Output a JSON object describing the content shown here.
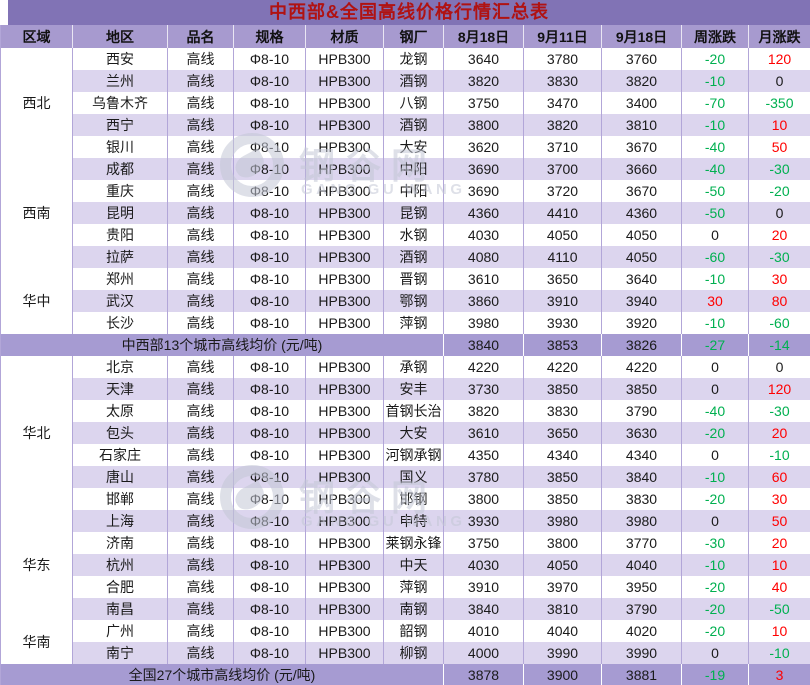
{
  "watermark": {
    "cn": "钢谷网",
    "en": "GANG GU WANG"
  },
  "colors": {
    "title_text": "#b01212",
    "title_bg": "#8173b5",
    "header_bg": "#a79acf",
    "stripe_bg": "#dcd5ee",
    "summary_bg": "#a69bd2",
    "grid": "#b2a6d8",
    "up_red": "#ff0000",
    "down_green": "#00b050"
  },
  "chart_data": {
    "type": "table",
    "title": "中西部&全国高线价格行情汇总表",
    "columns": [
      "区域",
      "地区",
      "品名",
      "规格",
      "材质",
      "钢厂",
      "8月18日",
      "9月11日",
      "9月18日",
      "周涨跌",
      "月涨跌"
    ],
    "shared_row_values": {
      "product": "高线",
      "spec": "Φ8-10",
      "material": "HPB300"
    },
    "groups": [
      {
        "region": "西北",
        "cities": [
          {
            "city": "西安",
            "mill": "龙钢",
            "prices": [
              3640,
              3780,
              3760
            ],
            "week": -20,
            "month": 120
          },
          {
            "city": "兰州",
            "mill": "酒钢",
            "prices": [
              3820,
              3830,
              3820
            ],
            "week": -10,
            "month": 0
          },
          {
            "city": "乌鲁木齐",
            "mill": "八钢",
            "prices": [
              3750,
              3470,
              3400
            ],
            "week": -70,
            "month": -350
          },
          {
            "city": "西宁",
            "mill": "酒钢",
            "prices": [
              3800,
              3820,
              3810
            ],
            "week": -10,
            "month": 10
          },
          {
            "city": "银川",
            "mill": "大安",
            "prices": [
              3620,
              3710,
              3670
            ],
            "week": -40,
            "month": 50
          }
        ]
      },
      {
        "region": "西南",
        "cities": [
          {
            "city": "成都",
            "mill": "中阳",
            "prices": [
              3690,
              3700,
              3660
            ],
            "week": -40,
            "month": -30
          },
          {
            "city": "重庆",
            "mill": "中阳",
            "prices": [
              3690,
              3720,
              3670
            ],
            "week": -50,
            "month": -20
          },
          {
            "city": "昆明",
            "mill": "昆钢",
            "prices": [
              4360,
              4410,
              4360
            ],
            "week": -50,
            "month": 0
          },
          {
            "city": "贵阳",
            "mill": "水钢",
            "prices": [
              4030,
              4050,
              4050
            ],
            "week": 0,
            "month": 20
          },
          {
            "city": "拉萨",
            "mill": "酒钢",
            "prices": [
              4080,
              4110,
              4050
            ],
            "week": -60,
            "month": -30
          }
        ]
      },
      {
        "region": "华中",
        "cities": [
          {
            "city": "郑州",
            "mill": "晋钢",
            "prices": [
              3610,
              3650,
              3640
            ],
            "week": -10,
            "month": 30
          },
          {
            "city": "武汉",
            "mill": "鄂钢",
            "prices": [
              3860,
              3910,
              3940
            ],
            "week": 30,
            "month": 80
          },
          {
            "city": "长沙",
            "mill": "萍钢",
            "prices": [
              3980,
              3930,
              3920
            ],
            "week": -10,
            "month": -60
          }
        ]
      },
      {
        "summary": {
          "label": "中西部13个城市高线均价 (元/吨)",
          "values": [
            3840,
            3853,
            3826,
            -27,
            -14
          ]
        }
      },
      {
        "region": "华北",
        "cities": [
          {
            "city": "北京",
            "mill": "承钢",
            "prices": [
              4220,
              4220,
              4220
            ],
            "week": 0,
            "month": 0
          },
          {
            "city": "天津",
            "mill": "安丰",
            "prices": [
              3730,
              3850,
              3850
            ],
            "week": 0,
            "month": 120
          },
          {
            "city": "太原",
            "mill": "首钢长治",
            "prices": [
              3820,
              3830,
              3790
            ],
            "week": -40,
            "month": -30
          },
          {
            "city": "包头",
            "mill": "大安",
            "prices": [
              3610,
              3650,
              3630
            ],
            "week": -20,
            "month": 20
          },
          {
            "city": "石家庄",
            "mill": "河钢承钢",
            "prices": [
              4350,
              4340,
              4340
            ],
            "week": 0,
            "month": -10
          },
          {
            "city": "唐山",
            "mill": "国义",
            "prices": [
              3780,
              3850,
              3840
            ],
            "week": -10,
            "month": 60
          },
          {
            "city": "邯郸",
            "mill": "邯钢",
            "prices": [
              3800,
              3850,
              3830
            ],
            "week": -20,
            "month": 30
          }
        ]
      },
      {
        "region": "华东",
        "cities": [
          {
            "city": "上海",
            "mill": "申特",
            "prices": [
              3930,
              3980,
              3980
            ],
            "week": 0,
            "month": 50
          },
          {
            "city": "济南",
            "mill": "莱钢永锋",
            "prices": [
              3750,
              3800,
              3770
            ],
            "week": -30,
            "month": 20
          },
          {
            "city": "杭州",
            "mill": "中天",
            "prices": [
              4030,
              4050,
              4040
            ],
            "week": -10,
            "month": 10
          },
          {
            "city": "合肥",
            "mill": "萍钢",
            "prices": [
              3910,
              3970,
              3950
            ],
            "week": -20,
            "month": 40
          },
          {
            "city": "南昌",
            "mill": "南钢",
            "prices": [
              3840,
              3810,
              3790
            ],
            "week": -20,
            "month": -50
          }
        ]
      },
      {
        "region": "华南",
        "cities": [
          {
            "city": "广州",
            "mill": "韶钢",
            "prices": [
              4010,
              4040,
              4020
            ],
            "week": -20,
            "month": 10
          },
          {
            "city": "南宁",
            "mill": "柳钢",
            "prices": [
              4000,
              3990,
              3990
            ],
            "week": 0,
            "month": -10
          }
        ]
      },
      {
        "summary": {
          "label": "全国27个城市高线均价 (元/吨)",
          "values": [
            3878,
            3900,
            3881,
            -19,
            3
          ]
        }
      }
    ]
  }
}
